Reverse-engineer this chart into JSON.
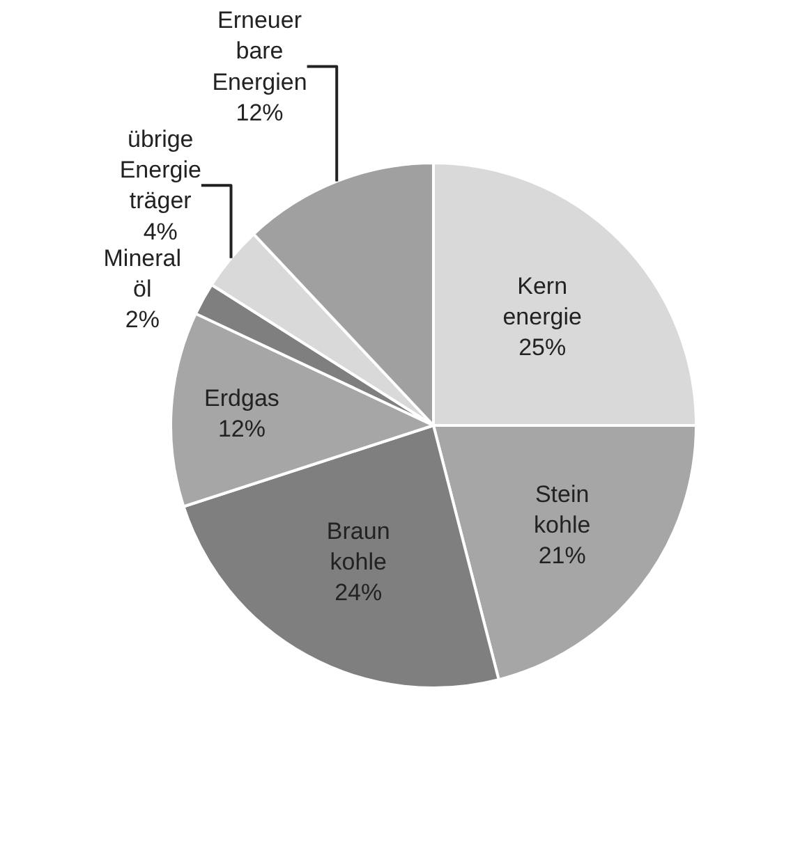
{
  "chart_data": {
    "type": "pie",
    "categories": [
      "Kern energie",
      "Stein kohle",
      "Braun kohle",
      "Erdgas",
      "Mineral öl",
      "übrige Energie träger",
      "Erneuer bare Energien"
    ],
    "values": [
      25,
      21,
      24,
      12,
      2,
      4,
      12
    ],
    "value_labels": [
      "25%",
      "21%",
      "24%",
      "12%",
      "2%",
      "4%",
      "12%"
    ],
    "colors": [
      "#d9d9d9",
      "#a6a6a6",
      "#7f7f7f",
      "#a6a6a6",
      "#7f7f7f",
      "#d9d9d9",
      "#a0a0a0"
    ],
    "legend": false
  }
}
